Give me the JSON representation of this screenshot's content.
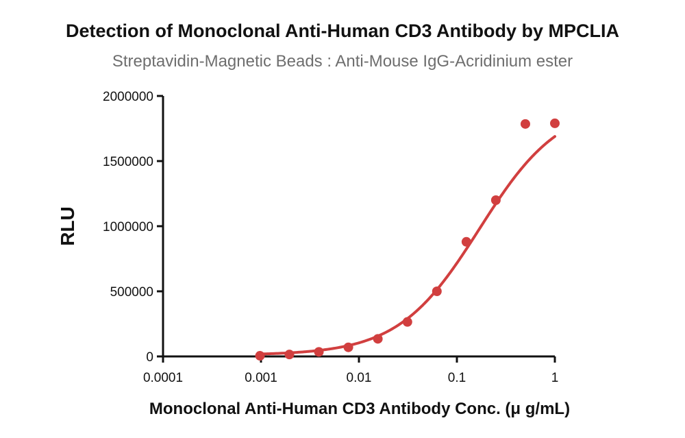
{
  "chart_data": {
    "type": "scatter",
    "title": "Detection of Monoclonal Anti-Human CD3 Antibody by MPCLIA",
    "subtitle": "Streptavidin-Magnetic Beads : Anti-Mouse IgG-Acridinium ester",
    "xlabel": "Monoclonal Anti-Human CD3 Antibody Conc. (μ g/mL)",
    "ylabel": "RLU",
    "x_scale": "log",
    "xlim": [
      0.0001,
      1
    ],
    "ylim": [
      0,
      2000000
    ],
    "x_ticks": [
      0.0001,
      0.001,
      0.01,
      0.1,
      1
    ],
    "x_tick_labels": [
      "0.0001",
      "0.001",
      "0.01",
      "0.1",
      "1"
    ],
    "y_ticks": [
      0,
      500000,
      1000000,
      1500000,
      2000000
    ],
    "y_tick_labels": [
      "0",
      "500000",
      "1000000",
      "1500000",
      "2000000"
    ],
    "grid": false,
    "color": "#d13f3f",
    "series": [
      {
        "x": [
          0.000977,
          0.00195,
          0.0039,
          0.0078,
          0.0156,
          0.03125,
          0.0625,
          0.125,
          0.25,
          0.5,
          1
        ],
        "y": [
          5000,
          15000,
          35000,
          70000,
          135000,
          265000,
          500000,
          880000,
          1200000,
          1785000,
          1790000
        ]
      }
    ],
    "fit_curve": {
      "type": "4PL",
      "bottom": 10000,
      "top": 1950000,
      "ec50": 0.17,
      "hill": 1.05
    }
  }
}
